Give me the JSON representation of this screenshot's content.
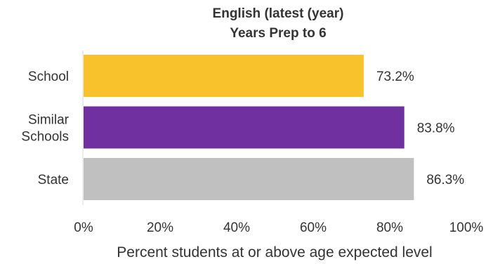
{
  "chart_data": {
    "type": "bar",
    "orientation": "horizontal",
    "title": [
      "English (latest (year)",
      "Years Prep to 6"
    ],
    "categories": [
      [
        "School"
      ],
      [
        "Similar",
        "Schools"
      ],
      [
        "State"
      ]
    ],
    "values": [
      73.2,
      83.8,
      86.3
    ],
    "value_labels": [
      "73.2%",
      "83.8%",
      "86.3%"
    ],
    "colors": [
      "#F8C22D",
      "#7030A0",
      "#C0C0C0"
    ],
    "xlim": [
      0,
      100
    ],
    "x_ticks": [
      0,
      20,
      40,
      60,
      80,
      100
    ],
    "x_tick_labels": [
      "0%",
      "20%",
      "40%",
      "60%",
      "80%",
      "100%"
    ],
    "xlabel": "Percent students at or above age expected level",
    "ylabel": "",
    "grid": false,
    "legend": "none"
  }
}
